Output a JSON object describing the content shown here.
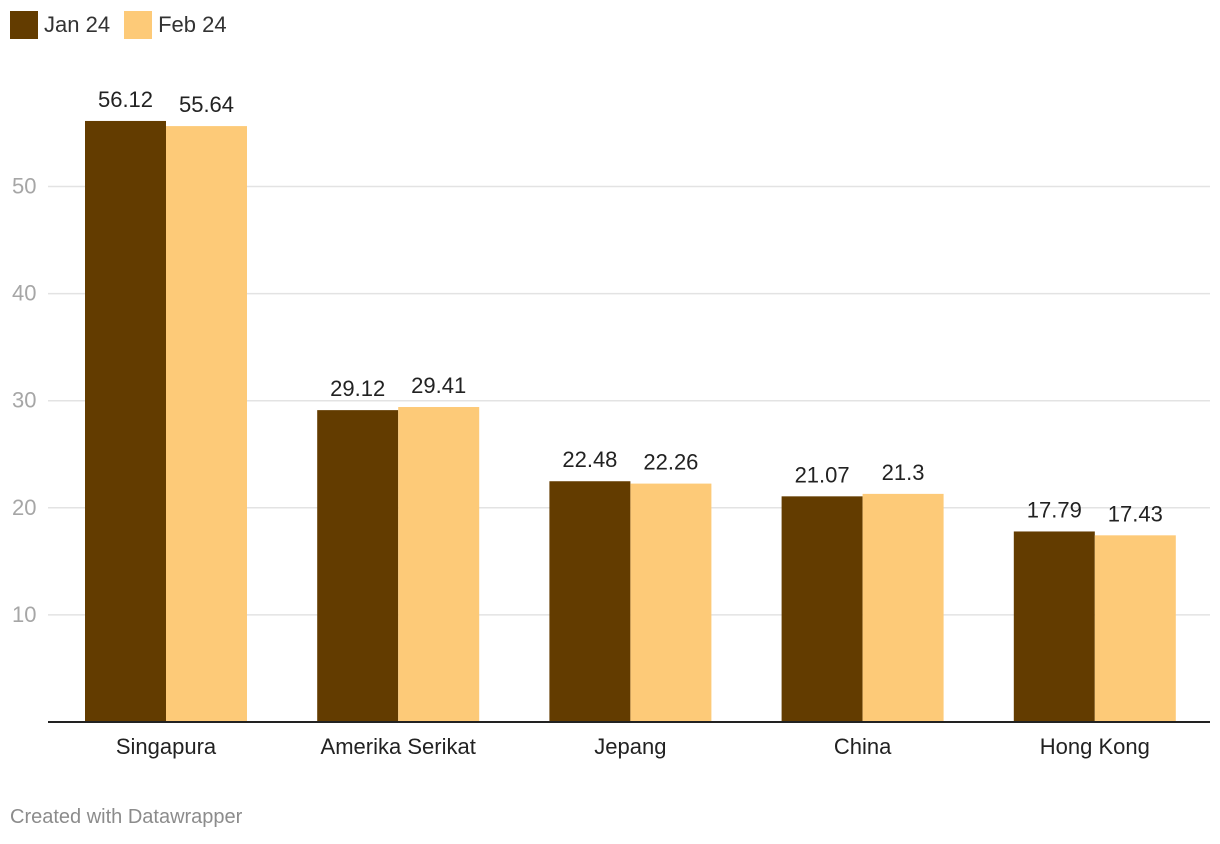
{
  "legend": {
    "items": [
      {
        "label": "Jan 24",
        "color": "#633c00"
      },
      {
        "label": "Feb 24",
        "color": "#fdca78"
      }
    ]
  },
  "chart_data": {
    "type": "bar",
    "categories": [
      "Singapura",
      "Amerika Serikat",
      "Jepang",
      "China",
      "Hong Kong"
    ],
    "series": [
      {
        "name": "Jan 24",
        "values": [
          56.12,
          29.12,
          22.48,
          21.07,
          17.79
        ],
        "labels": [
          "56.12",
          "29.12",
          "22.48",
          "21.07",
          "17.79"
        ],
        "color": "#633c00"
      },
      {
        "name": "Feb 24",
        "values": [
          55.64,
          29.41,
          22.26,
          21.3,
          17.43
        ],
        "labels": [
          "55.64",
          "29.41",
          "22.26",
          "21.3",
          "17.43"
        ],
        "color": "#fdca78"
      }
    ],
    "yticks": [
      10,
      20,
      30,
      40,
      50
    ],
    "ylim": [
      0,
      60
    ],
    "grid": true,
    "legend_position": "top-left"
  },
  "footer": {
    "credit": "Created with Datawrapper"
  }
}
